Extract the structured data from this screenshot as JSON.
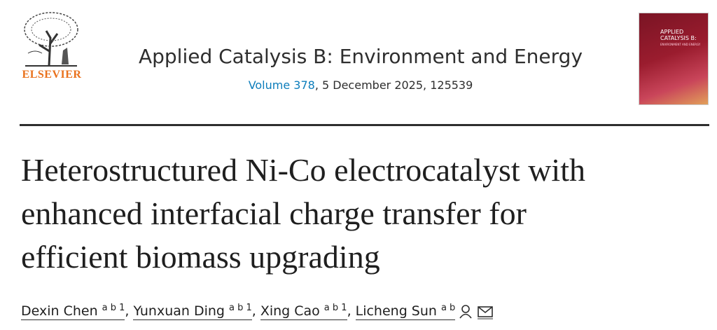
{
  "publisher": "ELSEVIER",
  "journal": {
    "title": "Applied Catalysis B: Environment and Energy",
    "volume": "Volume 378",
    "issue_info": ", 5 December 2025, 125539"
  },
  "cover": {
    "title": "APPLIED CATALYSIS B:",
    "subtitle": "ENVIRONMENT AND ENERGY"
  },
  "article": {
    "title_lines": [
      "Heterostructured Ni-Co electrocatalyst with",
      "enhanced interfacial charge transfer for",
      "efficient biomass upgrading"
    ]
  },
  "authors": [
    {
      "name": "Dexin Chen",
      "affiliations": "a b 1"
    },
    {
      "name": "Yunxuan Ding",
      "affiliations": "a b 1"
    },
    {
      "name": "Xing Cao",
      "affiliations": "a b 1"
    },
    {
      "name": "Licheng Sun",
      "affiliations": "a b"
    }
  ],
  "author_separator": ","
}
